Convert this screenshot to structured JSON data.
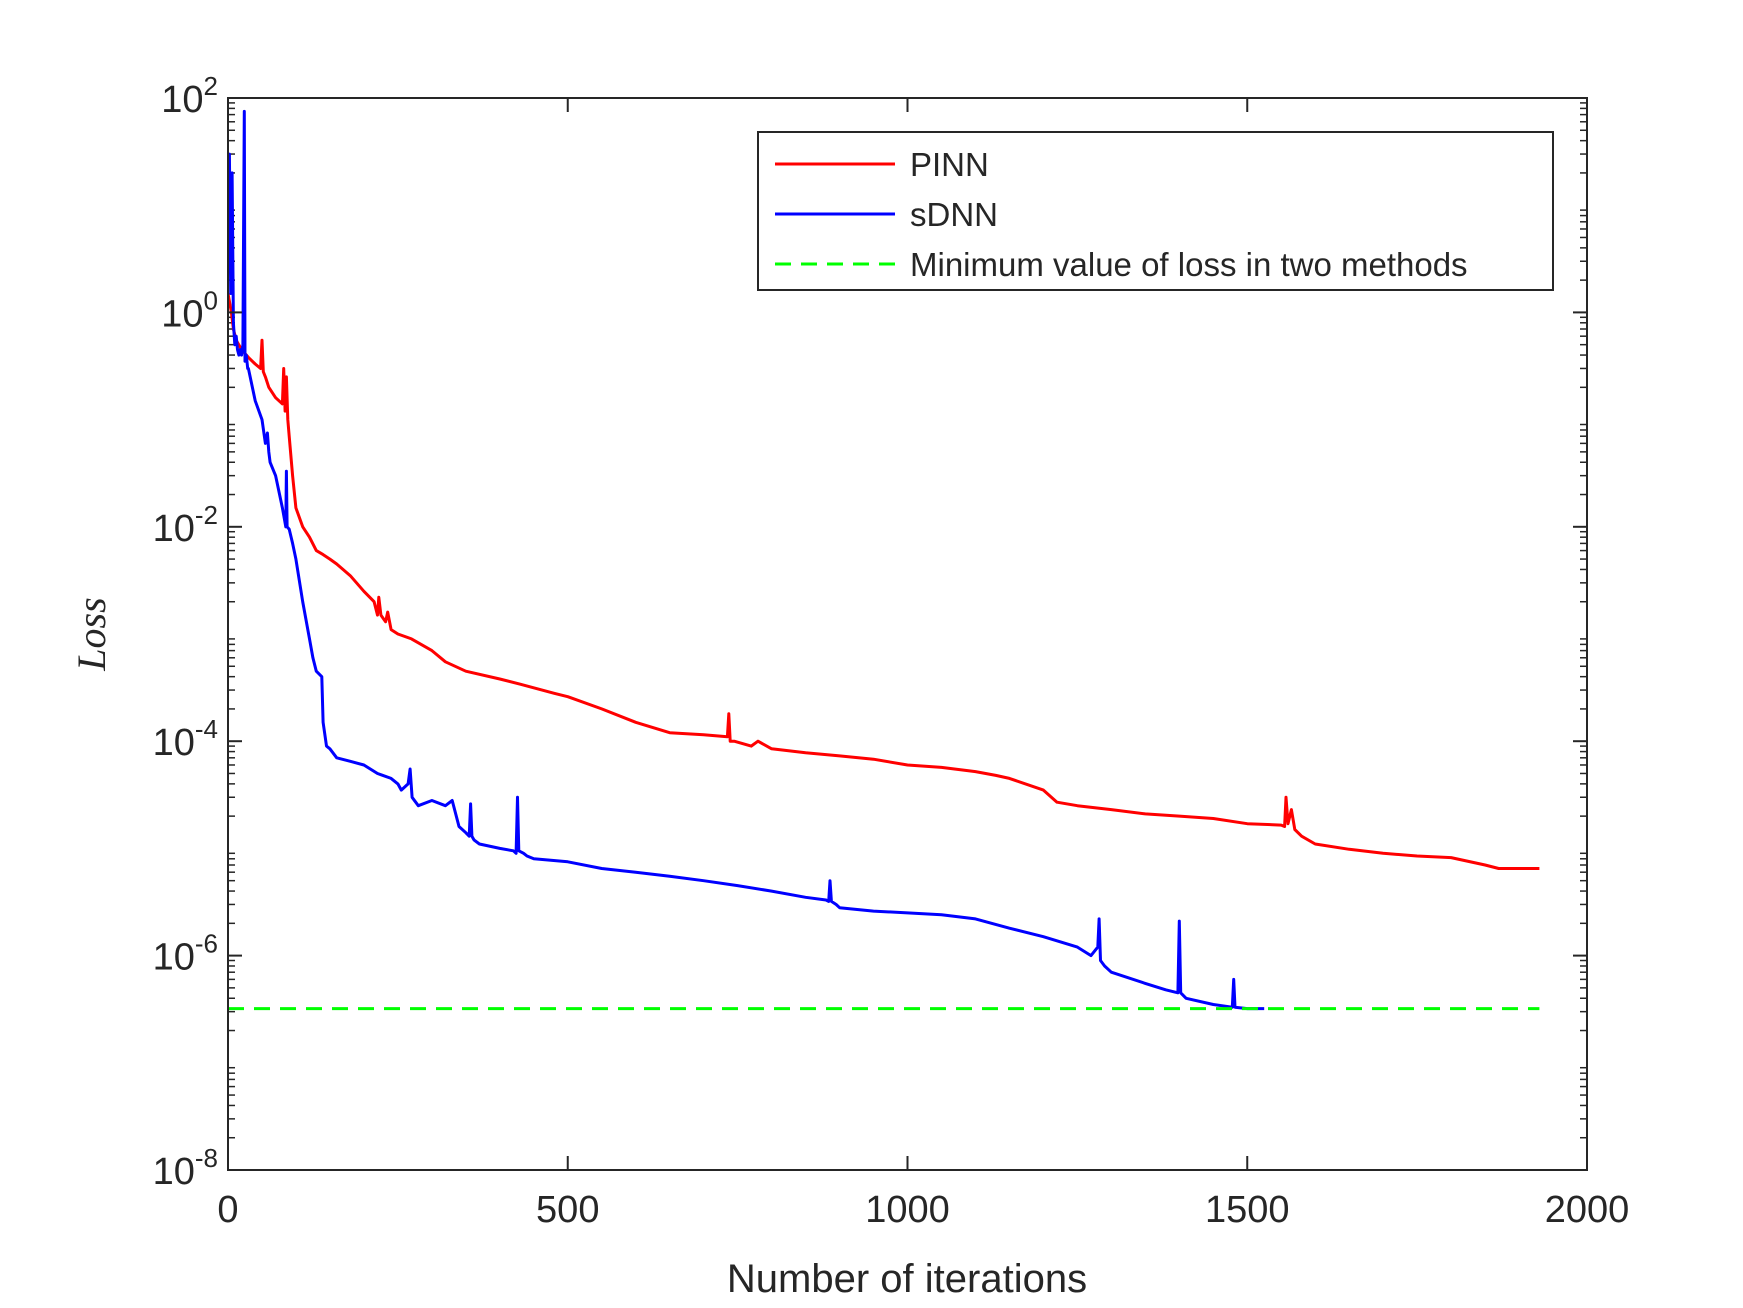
{
  "chart_data": {
    "type": "line",
    "title": "",
    "xlabel": "Number of iterations",
    "ylabel": "Loss",
    "xlim": [
      0,
      2000
    ],
    "ylim": [
      1e-08,
      100
    ],
    "yscale": "log",
    "grid": false,
    "legend_position": "top-right",
    "x_ticks": [
      {
        "value": 0,
        "label": "0"
      },
      {
        "value": 500,
        "label": "500"
      },
      {
        "value": 1000,
        "label": "1000"
      },
      {
        "value": 1500,
        "label": "1500"
      },
      {
        "value": 2000,
        "label": "2000"
      }
    ],
    "y_ticks": [
      {
        "value": 100,
        "base": "10",
        "exp": "2"
      },
      {
        "value": 1,
        "base": "10",
        "exp": "0"
      },
      {
        "value": 0.01,
        "base": "10",
        "exp": "-2"
      },
      {
        "value": 0.0001,
        "base": "10",
        "exp": "-4"
      },
      {
        "value": 1e-06,
        "base": "10",
        "exp": "-6"
      },
      {
        "value": 1e-08,
        "base": "10",
        "exp": "-8"
      }
    ],
    "series": [
      {
        "name": "PINN",
        "color": "#ff0000",
        "style": "solid",
        "x": [
          0,
          5,
          8,
          12,
          20,
          30,
          40,
          48,
          50,
          52,
          55,
          60,
          70,
          80,
          82,
          84,
          86,
          88,
          90,
          95,
          100,
          110,
          120,
          130,
          140,
          150,
          160,
          180,
          200,
          215,
          220,
          222,
          225,
          232,
          235,
          240,
          250,
          270,
          300,
          320,
          350,
          400,
          430,
          480,
          500,
          550,
          600,
          650,
          700,
          735,
          737,
          739,
          745,
          770,
          780,
          800,
          850,
          900,
          950,
          1000,
          1050,
          1100,
          1130,
          1150,
          1200,
          1220,
          1250,
          1300,
          1350,
          1400,
          1450,
          1500,
          1550,
          1555,
          1557,
          1560,
          1565,
          1570,
          1580,
          1600,
          1650,
          1700,
          1750,
          1800,
          1850,
          1870,
          1930
        ],
        "values": [
          1.5,
          1.0,
          0.7,
          0.55,
          0.45,
          0.38,
          0.33,
          0.3,
          0.55,
          0.28,
          0.25,
          0.2,
          0.16,
          0.14,
          0.3,
          0.12,
          0.25,
          0.1,
          0.07,
          0.03,
          0.015,
          0.01,
          0.008,
          0.006,
          0.0055,
          0.005,
          0.0045,
          0.0035,
          0.0025,
          0.002,
          0.0015,
          0.0022,
          0.0015,
          0.0013,
          0.0016,
          0.0011,
          0.001,
          0.0009,
          0.0007,
          0.00055,
          0.00045,
          0.00038,
          0.00034,
          0.00028,
          0.00026,
          0.0002,
          0.00015,
          0.00012,
          0.000115,
          0.00011,
          0.00018,
          0.0001,
          0.0001,
          9e-05,
          0.0001,
          8.5e-05,
          7.8e-05,
          7.3e-05,
          6.8e-05,
          6e-05,
          5.7e-05,
          5.2e-05,
          4.8e-05,
          4.5e-05,
          3.5e-05,
          2.7e-05,
          2.5e-05,
          2.3e-05,
          2.1e-05,
          2e-05,
          1.9e-05,
          1.7e-05,
          1.65e-05,
          1.6e-05,
          3e-05,
          1.7e-05,
          2.3e-05,
          1.5e-05,
          1.3e-05,
          1.1e-05,
          9.8e-06,
          9e-06,
          8.5e-06,
          8.2e-06,
          7e-06,
          6.5e-06,
          6.5e-06
        ]
      },
      {
        "name": "sDNN",
        "color": "#0000ff",
        "style": "solid",
        "x": [
          0,
          2,
          4,
          6,
          8,
          10,
          12,
          14,
          16,
          18,
          20,
          22,
          24,
          25,
          27,
          29,
          30,
          40,
          50,
          55,
          58,
          60,
          62,
          70,
          80,
          85,
          86,
          87,
          90,
          95,
          100,
          110,
          120,
          125,
          130,
          138,
          140,
          145,
          150,
          160,
          180,
          200,
          220,
          240,
          250,
          255,
          265,
          268,
          271,
          280,
          300,
          320,
          330,
          340,
          350,
          355,
          357,
          359,
          362,
          370,
          400,
          420,
          424,
          426,
          428,
          435,
          440,
          450,
          500,
          550,
          600,
          650,
          700,
          750,
          800,
          850,
          880,
          884,
          886,
          888,
          895,
          900,
          950,
          1000,
          1050,
          1100,
          1150,
          1200,
          1250,
          1270,
          1280,
          1282,
          1284,
          1290,
          1300,
          1350,
          1380,
          1398,
          1400,
          1402,
          1410,
          1450,
          1478,
          1480,
          1482,
          1500,
          1525
        ],
        "values": [
          3.0,
          30,
          1.5,
          20,
          0.8,
          0.5,
          0.6,
          0.45,
          0.4,
          0.45,
          0.4,
          0.5,
          75,
          0.35,
          0.4,
          0.3,
          0.3,
          0.15,
          0.1,
          0.06,
          0.075,
          0.05,
          0.04,
          0.03,
          0.015,
          0.01,
          0.033,
          0.01,
          0.0095,
          0.007,
          0.005,
          0.002,
          0.0009,
          0.0006,
          0.00045,
          0.0004,
          0.00015,
          9e-05,
          8.5e-05,
          7e-05,
          6.5e-05,
          6e-05,
          5e-05,
          4.5e-05,
          4e-05,
          3.5e-05,
          4e-05,
          5.5e-05,
          3e-05,
          2.5e-05,
          2.8e-05,
          2.5e-05,
          2.8e-05,
          1.6e-05,
          1.4e-05,
          1.3e-05,
          2.6e-05,
          1.3e-05,
          1.2e-05,
          1.1e-05,
          1e-05,
          9.5e-06,
          9e-06,
          3e-05,
          9.5e-06,
          9e-06,
          8.5e-06,
          8e-06,
          7.5e-06,
          6.5e-06,
          6e-06,
          5.5e-06,
          5e-06,
          4.5e-06,
          4e-06,
          3.5e-06,
          3.3e-06,
          3.2e-06,
          5e-06,
          3.2e-06,
          3e-06,
          2.8e-06,
          2.6e-06,
          2.5e-06,
          2.4e-06,
          2.2e-06,
          1.8e-06,
          1.5e-06,
          1.2e-06,
          1e-06,
          1.2e-06,
          2.2e-06,
          9e-07,
          8e-07,
          7e-07,
          5.5e-07,
          4.8e-07,
          4.5e-07,
          2.1e-06,
          4.5e-07,
          4e-07,
          3.5e-07,
          3.3e-07,
          6e-07,
          3.3e-07,
          3.2e-07,
          3.2e-07
        ]
      },
      {
        "name": "Minimum value of loss in two methods",
        "color": "#00ff00",
        "style": "dashed",
        "x": [
          0,
          1930
        ],
        "values": [
          3.2e-07,
          3.2e-07
        ]
      }
    ]
  }
}
